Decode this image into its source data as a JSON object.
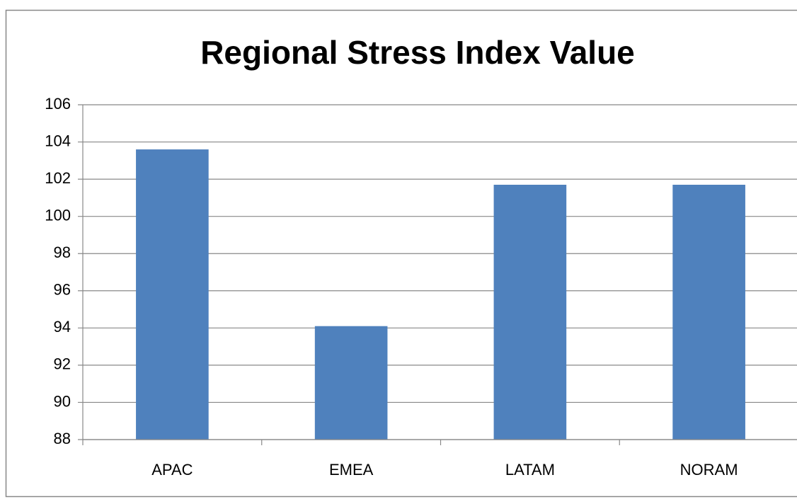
{
  "chart_data": {
    "type": "bar",
    "title": "Regional Stress Index Value",
    "categories": [
      "APAC",
      "EMEA",
      "LATAM",
      "NORAM"
    ],
    "values": [
      103.6,
      94.1,
      101.7,
      101.7
    ],
    "color": "#4f81bd",
    "ylim": [
      88,
      106
    ],
    "yticks": [
      88,
      90,
      92,
      94,
      96,
      98,
      100,
      102,
      104,
      106
    ],
    "grid": true
  }
}
